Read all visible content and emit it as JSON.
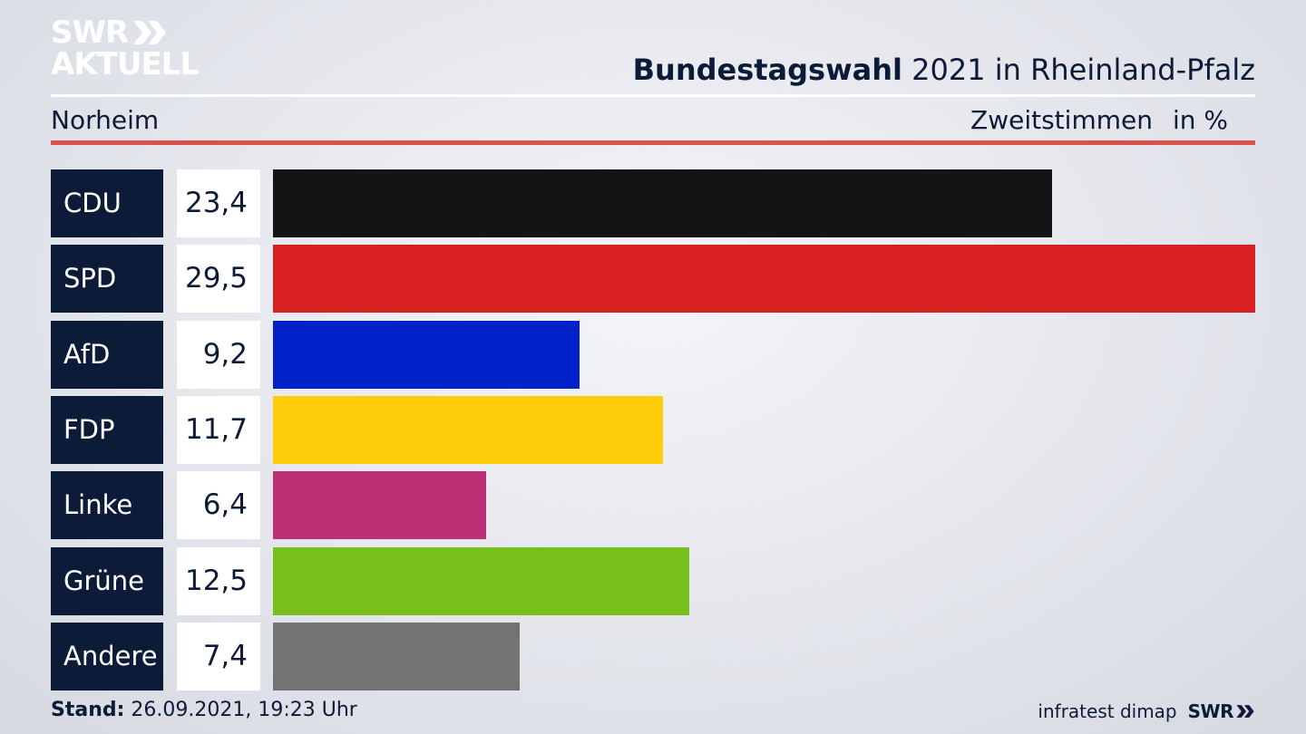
{
  "brand": {
    "logo_line1": "SWR",
    "logo_line2": "AKTUELL",
    "footer_logo": "SWR"
  },
  "header": {
    "title_bold": "Bundestagswahl",
    "title_rest": " 2021 in Rheinland-Pfalz",
    "region": "Norheim",
    "measure": "Zweitstimmen",
    "unit": "in %"
  },
  "footer": {
    "stand_label": "Stand:",
    "stand_value": " 26.09.2021, 19:23 Uhr",
    "source": "infratest dimap"
  },
  "colors": {
    "navy": "#0c1b38",
    "accent_red_rule": "#d9534a"
  },
  "chart_data": {
    "type": "bar",
    "orientation": "horizontal",
    "categories": [
      "CDU",
      "SPD",
      "AfD",
      "FDP",
      "Linke",
      "Grüne",
      "Andere"
    ],
    "values": [
      23.4,
      29.5,
      9.2,
      11.7,
      6.4,
      12.5,
      7.4
    ],
    "value_labels": [
      "23,4",
      "29,5",
      "9,2",
      "11,7",
      "6,4",
      "12,5",
      "7,4"
    ],
    "bar_colors": [
      "#141414",
      "#d92020",
      "#0222c9",
      "#fecc08",
      "#be3075",
      "#79bf1c",
      "#737374"
    ],
    "xlim": [
      0,
      29.5
    ]
  }
}
